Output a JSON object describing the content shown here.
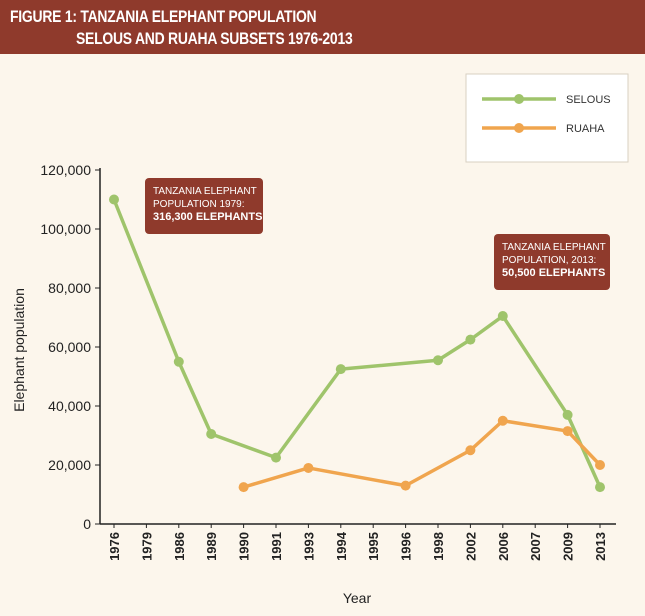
{
  "header": {
    "title_line1": "FIGURE 1: TANZANIA ELEPHANT POPULATION",
    "title_line2": "SELOUS AND RUAHA SUBSETS 1976-2013"
  },
  "annotations": [
    {
      "line1": "TANZANIA ELEPHANT",
      "line2": "POPULATION 1979:",
      "line3": "316,300 ELEPHANTS"
    },
    {
      "line1": "TANZANIA ELEPHANT",
      "line2": "POPULATION, 2013:",
      "line3": "50,500 ELEPHANTS"
    }
  ],
  "colors": {
    "header": "#8f3a2c",
    "selous": "#9fc46b",
    "ruaha": "#f0a54e",
    "annotation": "#8f3a2c",
    "background": "#fcf6ec"
  },
  "chart_data": {
    "type": "line",
    "xlabel": "Year",
    "ylabel": "Elephant population",
    "categories": [
      "1976",
      "1979",
      "1986",
      "1989",
      "1990",
      "1991",
      "1993",
      "1994",
      "1995",
      "1996",
      "1998",
      "2002",
      "2006",
      "2007",
      "2009",
      "2013"
    ],
    "ylim": [
      0,
      120000
    ],
    "yticks": [
      0,
      20000,
      40000,
      60000,
      80000,
      100000,
      120000
    ],
    "ytick_labels": [
      "0",
      "20,000",
      "40,000",
      "60,000",
      "80,000",
      "100,000",
      "120,000"
    ],
    "grid": false,
    "legend": "top-right",
    "series": [
      {
        "name": "SELOUS",
        "color": "#9fc46b",
        "values": [
          110000,
          null,
          55000,
          30500,
          null,
          22500,
          null,
          52500,
          null,
          null,
          55500,
          62500,
          70500,
          null,
          37000,
          12500
        ]
      },
      {
        "name": "RUAHA",
        "color": "#f0a54e",
        "values": [
          null,
          null,
          null,
          null,
          12500,
          null,
          19000,
          null,
          null,
          13000,
          null,
          25000,
          35000,
          null,
          31500,
          20000
        ]
      }
    ]
  }
}
